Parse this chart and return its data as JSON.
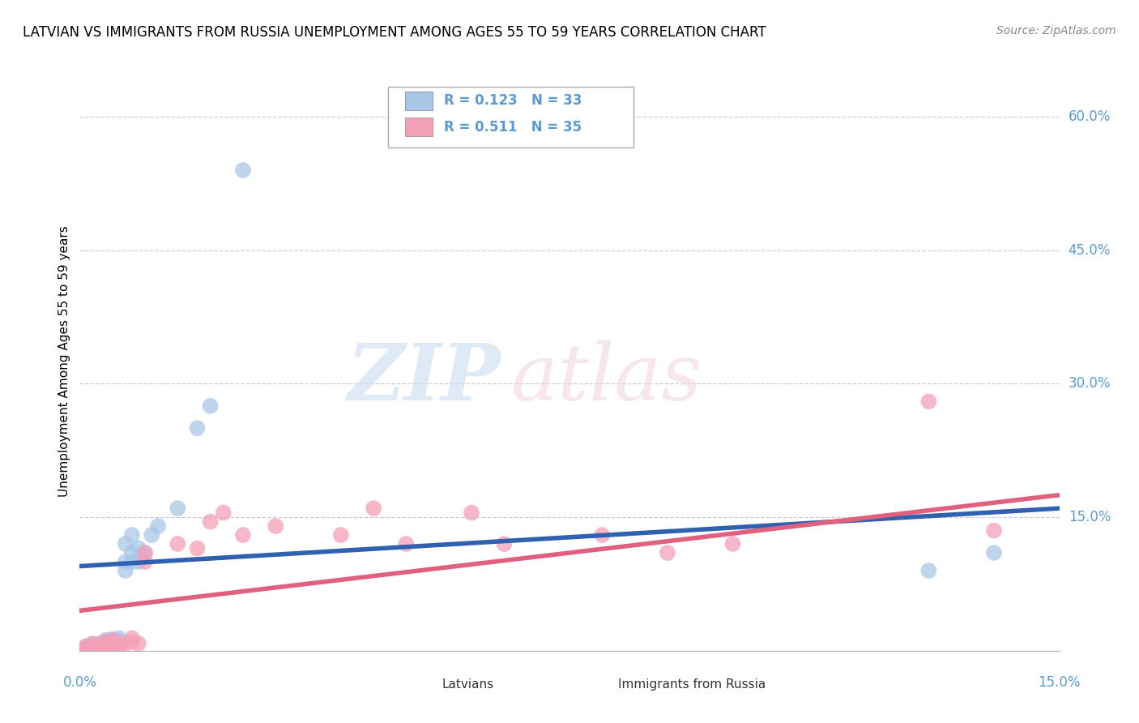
{
  "title": "LATVIAN VS IMMIGRANTS FROM RUSSIA UNEMPLOYMENT AMONG AGES 55 TO 59 YEARS CORRELATION CHART",
  "source": "Source: ZipAtlas.com",
  "ylabel": "Unemployment Among Ages 55 to 59 years",
  "ytick_labels": [
    "15.0%",
    "30.0%",
    "45.0%",
    "60.0%"
  ],
  "ytick_values": [
    0.15,
    0.3,
    0.45,
    0.6
  ],
  "xlim": [
    0.0,
    0.15
  ],
  "ylim": [
    0.0,
    0.65
  ],
  "legend1_R": "0.123",
  "legend1_N": "33",
  "legend2_R": "0.511",
  "legend2_N": "35",
  "color_blue": "#A8C8E8",
  "color_pink": "#F4A0B8",
  "color_blue_line": "#3060B0",
  "color_pink_line": "#E06080",
  "color_axis_label": "#5B9BD5",
  "watermark_zip": "ZIP",
  "watermark_atlas": "atlas",
  "latvians_x": [
    0.001,
    0.001,
    0.002,
    0.002,
    0.003,
    0.003,
    0.004,
    0.004,
    0.004,
    0.005,
    0.005,
    0.005,
    0.005,
    0.006,
    0.006,
    0.006,
    0.007,
    0.007,
    0.007,
    0.008,
    0.008,
    0.008,
    0.009,
    0.009,
    0.01,
    0.011,
    0.012,
    0.015,
    0.018,
    0.02,
    0.025,
    0.13,
    0.14
  ],
  "latvians_y": [
    0.002,
    0.005,
    0.003,
    0.007,
    0.005,
    0.008,
    0.005,
    0.01,
    0.012,
    0.003,
    0.006,
    0.01,
    0.013,
    0.008,
    0.011,
    0.014,
    0.09,
    0.1,
    0.12,
    0.1,
    0.11,
    0.13,
    0.1,
    0.115,
    0.11,
    0.13,
    0.14,
    0.16,
    0.25,
    0.275,
    0.54,
    0.09,
    0.11
  ],
  "immigrants_x": [
    0.001,
    0.001,
    0.002,
    0.002,
    0.003,
    0.003,
    0.004,
    0.004,
    0.005,
    0.005,
    0.005,
    0.006,
    0.006,
    0.007,
    0.008,
    0.008,
    0.009,
    0.01,
    0.01,
    0.015,
    0.018,
    0.02,
    0.022,
    0.025,
    0.03,
    0.04,
    0.045,
    0.05,
    0.06,
    0.065,
    0.08,
    0.09,
    0.1,
    0.13,
    0.14
  ],
  "immigrants_y": [
    0.002,
    0.005,
    0.004,
    0.008,
    0.003,
    0.007,
    0.005,
    0.01,
    0.003,
    0.008,
    0.012,
    0.005,
    0.009,
    0.007,
    0.01,
    0.014,
    0.008,
    0.1,
    0.11,
    0.12,
    0.115,
    0.145,
    0.155,
    0.13,
    0.14,
    0.13,
    0.16,
    0.12,
    0.155,
    0.12,
    0.13,
    0.11,
    0.12,
    0.28,
    0.135
  ],
  "blue_line_x0": 0.0,
  "blue_line_y0": 0.095,
  "blue_line_x1": 0.15,
  "blue_line_y1": 0.16,
  "pink_line_x0": 0.0,
  "pink_line_y0": 0.045,
  "pink_line_x1": 0.15,
  "pink_line_y1": 0.175
}
